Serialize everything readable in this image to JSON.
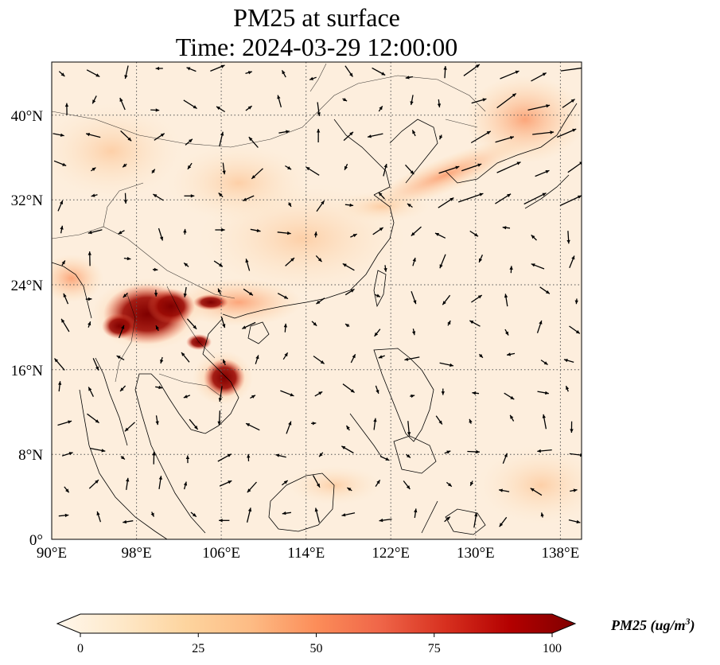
{
  "title": {
    "line1": "PM25 at surface",
    "line2": "Time: 2024-03-29 12:00:00"
  },
  "map": {
    "projection": "PlateCarree",
    "lon_range": [
      90,
      140
    ],
    "lat_range": [
      0,
      45
    ],
    "gridlines": "dotted",
    "coastlines": true,
    "borders": true,
    "lat_ticks": [
      {
        "value": 0,
        "label": "0°"
      },
      {
        "value": 8,
        "label": "8°N"
      },
      {
        "value": 16,
        "label": "16°N"
      },
      {
        "value": 24,
        "label": "24°N"
      },
      {
        "value": 32,
        "label": "32°N"
      },
      {
        "value": 40,
        "label": "40°N"
      }
    ],
    "lon_ticks": [
      {
        "value": 90,
        "label": "90°E"
      },
      {
        "value": 98,
        "label": "98°E"
      },
      {
        "value": 106,
        "label": "106°E"
      },
      {
        "value": 114,
        "label": "114°E"
      },
      {
        "value": 122,
        "label": "122°E"
      },
      {
        "value": 130,
        "label": "130°E"
      },
      {
        "value": 138,
        "label": "138°E"
      }
    ],
    "variable": "PM25",
    "wind_vectors": true
  },
  "colorbar": {
    "cmap": "OrRd",
    "extend": "both",
    "range": [
      0,
      100
    ],
    "ticks": [
      "0",
      "25",
      "50",
      "75",
      "100"
    ],
    "label_text": "PM25 (ug/m",
    "label_sup": "3",
    "label_close": ")",
    "colors": [
      "#fff7ec",
      "#fee8c8",
      "#fdd49e",
      "#fdbb84",
      "#fc8d59",
      "#ef6548",
      "#d7301f",
      "#b30000",
      "#7f0000"
    ]
  }
}
